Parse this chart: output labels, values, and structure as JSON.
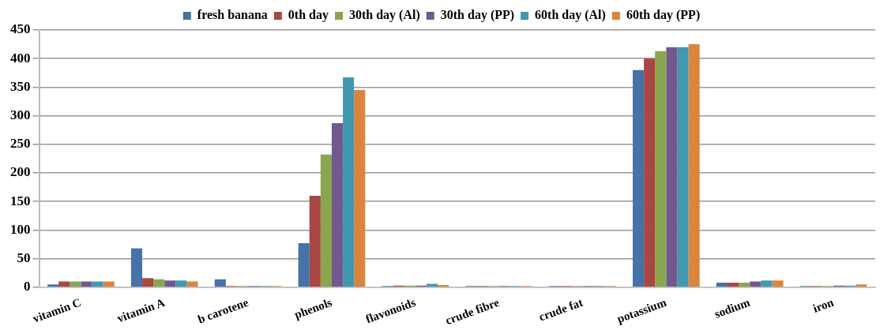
{
  "chart_data": {
    "type": "bar",
    "categories": [
      "vitamin C",
      "vitamin A",
      "b carotene",
      "phenols",
      "flavonoids",
      "crude fibre",
      "crude fat",
      "potassium",
      "sodium",
      "iron"
    ],
    "series": [
      {
        "name": "fresh banana",
        "color": "#4572a7",
        "values": [
          5,
          68,
          14,
          77,
          2,
          2,
          2,
          380,
          8,
          2
        ]
      },
      {
        "name": "0th day",
        "color": "#aa4643",
        "values": [
          10,
          16,
          2,
          160,
          3,
          2,
          2,
          400,
          8,
          2
        ]
      },
      {
        "name": "30th day (Al)",
        "color": "#89a54e",
        "values": [
          10,
          14,
          2,
          232,
          3,
          2,
          2,
          413,
          8,
          2
        ]
      },
      {
        "name": "30th day (PP)",
        "color": "#71588f",
        "values": [
          10,
          12,
          2,
          287,
          3,
          2,
          2,
          420,
          10,
          3
        ]
      },
      {
        "name": "60th day (Al)",
        "color": "#4198af",
        "values": [
          10,
          12,
          2,
          367,
          6,
          2,
          2,
          420,
          12,
          3
        ]
      },
      {
        "name": "60th day (PP)",
        "color": "#db843d",
        "values": [
          10,
          10,
          2,
          345,
          4,
          2,
          2,
          425,
          12,
          5
        ]
      }
    ],
    "ylim": [
      0,
      450
    ],
    "yticks": [
      0,
      50,
      100,
      150,
      200,
      250,
      300,
      350,
      400,
      450
    ],
    "grid": "y",
    "legend": "top"
  }
}
